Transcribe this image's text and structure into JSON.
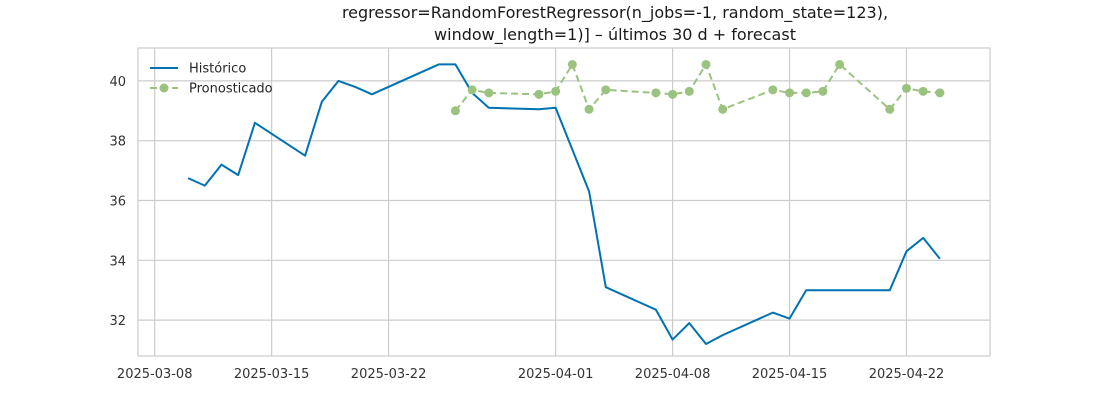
{
  "chart_data": {
    "type": "line",
    "title_lines": [
      "regressor=RandomForestRegressor(n_jobs=-1, random_state=123),",
      "window_length=1)] – últimos 30 d + forecast"
    ],
    "xlabel": "",
    "ylabel": "",
    "x_ticks": [
      "2025-03-08",
      "2025-03-15",
      "2025-03-22",
      "2025-04-01",
      "2025-04-08",
      "2025-04-15",
      "2025-04-22"
    ],
    "y_ticks": [
      32,
      34,
      36,
      38,
      40
    ],
    "xlim": [
      "2025-03-07",
      "2025-04-27"
    ],
    "ylim": [
      30.8,
      41.1
    ],
    "grid": true,
    "legend_position": "upper-left",
    "series": [
      {
        "name": "Histórico",
        "color": "#0072B2",
        "style": "solid",
        "marker": "none",
        "points": [
          [
            "2025-03-10",
            36.75
          ],
          [
            "2025-03-11",
            36.5
          ],
          [
            "2025-03-12",
            37.2
          ],
          [
            "2025-03-13",
            36.85
          ],
          [
            "2025-03-14",
            38.6
          ],
          [
            "2025-03-17",
            37.5
          ],
          [
            "2025-03-18",
            39.3
          ],
          [
            "2025-03-19",
            40.0
          ],
          [
            "2025-03-20",
            39.8
          ],
          [
            "2025-03-21",
            39.55
          ],
          [
            "2025-03-25",
            40.55
          ],
          [
            "2025-03-26",
            40.55
          ],
          [
            "2025-03-27",
            39.6
          ],
          [
            "2025-03-28",
            39.1
          ],
          [
            "2025-03-31",
            39.05
          ],
          [
            "2025-04-01",
            39.1
          ],
          [
            "2025-04-02",
            37.7
          ],
          [
            "2025-04-03",
            36.3
          ],
          [
            "2025-04-04",
            33.1
          ],
          [
            "2025-04-07",
            32.35
          ],
          [
            "2025-04-08",
            31.35
          ],
          [
            "2025-04-09",
            31.9
          ],
          [
            "2025-04-10",
            31.2
          ],
          [
            "2025-04-11",
            31.5
          ],
          [
            "2025-04-14",
            32.25
          ],
          [
            "2025-04-15",
            32.05
          ],
          [
            "2025-04-16",
            33.0
          ],
          [
            "2025-04-21",
            33.0
          ],
          [
            "2025-04-22",
            34.3
          ],
          [
            "2025-04-23",
            34.75
          ],
          [
            "2025-04-24",
            34.05
          ]
        ]
      },
      {
        "name": "Pronosticado",
        "color": "#9BC27F",
        "style": "dashed",
        "marker": "circle",
        "points": [
          [
            "2025-03-26",
            39.0
          ],
          [
            "2025-03-27",
            39.7
          ],
          [
            "2025-03-28",
            39.6
          ],
          [
            "2025-03-31",
            39.55
          ],
          [
            "2025-04-01",
            39.65
          ],
          [
            "2025-04-02",
            40.55
          ],
          [
            "2025-04-03",
            39.05
          ],
          [
            "2025-04-04",
            39.7
          ],
          [
            "2025-04-07",
            39.6
          ],
          [
            "2025-04-08",
            39.55
          ],
          [
            "2025-04-09",
            39.65
          ],
          [
            "2025-04-10",
            40.55
          ],
          [
            "2025-04-11",
            39.05
          ],
          [
            "2025-04-14",
            39.7
          ],
          [
            "2025-04-15",
            39.6
          ],
          [
            "2025-04-16",
            39.6
          ],
          [
            "2025-04-17",
            39.65
          ],
          [
            "2025-04-18",
            40.55
          ],
          [
            "2025-04-21",
            39.05
          ],
          [
            "2025-04-22",
            39.75
          ],
          [
            "2025-04-23",
            39.65
          ],
          [
            "2025-04-24",
            39.6
          ]
        ]
      }
    ]
  }
}
